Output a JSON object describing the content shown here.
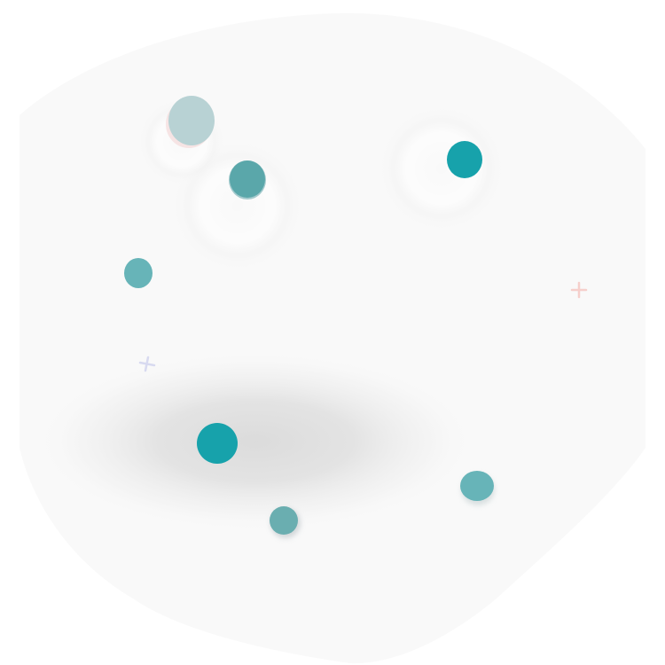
{
  "illustration": {
    "background_color": "#f9f9f9",
    "shadow_color": "#d6d6d6",
    "dots": [
      {
        "name": "dot-top-left-pale",
        "color": "#b8d2d4",
        "halo": "#f3d6d6"
      },
      {
        "name": "dot-upper-left",
        "color": "#5aa7aa",
        "halo": "#4e9aa0"
      },
      {
        "name": "dot-top-right",
        "color": "#17a2ab",
        "halo": null
      },
      {
        "name": "dot-left-middle",
        "color": "#67b4b8",
        "halo": null
      },
      {
        "name": "dot-lower-left",
        "color": "#17a2ab",
        "halo": null
      },
      {
        "name": "dot-lower-right",
        "color": "#67b4b8",
        "halo": "#d2dadb"
      },
      {
        "name": "dot-bottom-middle",
        "color": "#6aaeb0",
        "halo": "#c9cfd2"
      }
    ],
    "sparkles": [
      {
        "name": "sparkle-plus-right",
        "color": "#f6cfcb"
      },
      {
        "name": "sparkle-cross-left",
        "color": "#d8daf0"
      }
    ]
  }
}
